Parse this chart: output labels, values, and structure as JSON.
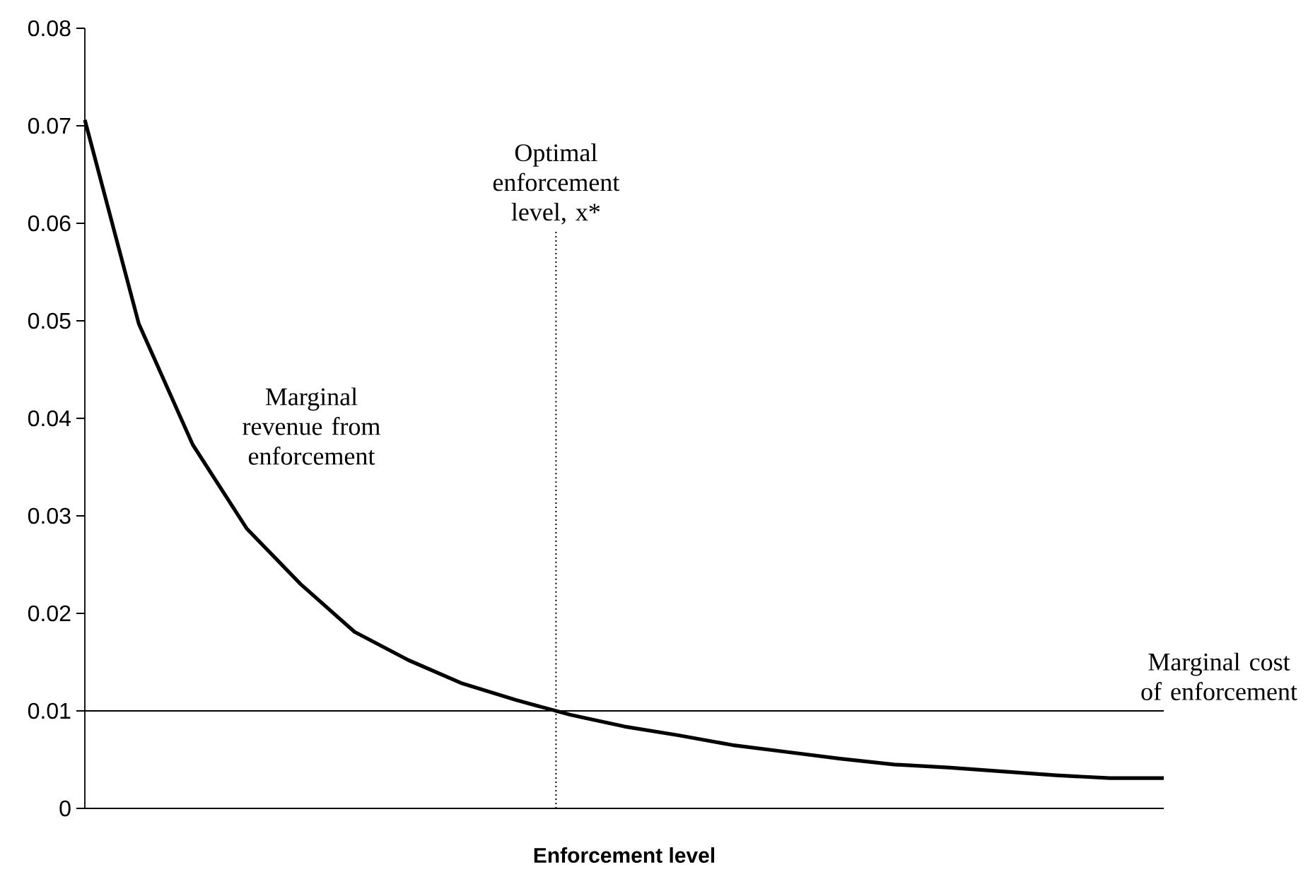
{
  "chart_data": {
    "type": "line",
    "xlabel": "Enforcement level",
    "categories": [
      null,
      null,
      null,
      null,
      null,
      null,
      null,
      null,
      null,
      null,
      null,
      null,
      null,
      null,
      null,
      null,
      null,
      null,
      null,
      null,
      null
    ],
    "series": [
      {
        "color": "#000000",
        "line_style": "solid",
        "values": [
          0.0706,
          0.0497,
          0.0373,
          0.0287,
          0.023,
          0.0181,
          0.0152,
          0.0128,
          0.0111,
          0.0096,
          0.0084,
          0.0075,
          0.0065,
          0.0058,
          0.0051,
          0.0045,
          0.0042,
          0.0038,
          0.0034,
          0.0031,
          0.0031
        ]
      }
    ],
    "ylim": [
      0,
      0.08
    ],
    "yticks": [
      0,
      0.01,
      0.02,
      0.03,
      0.04,
      0.05,
      0.06,
      0.07,
      0.08
    ],
    "tick_labels": "y",
    "ref_lines": [
      {
        "axis": "y",
        "value": 0.01,
        "label": "Marginal cost of enforcement",
        "color": "#000000",
        "line_style": "solid"
      }
    ],
    "annotations": [
      "Marginal revenue from enforcement",
      "Optimal enforcement level, x*"
    ]
  }
}
